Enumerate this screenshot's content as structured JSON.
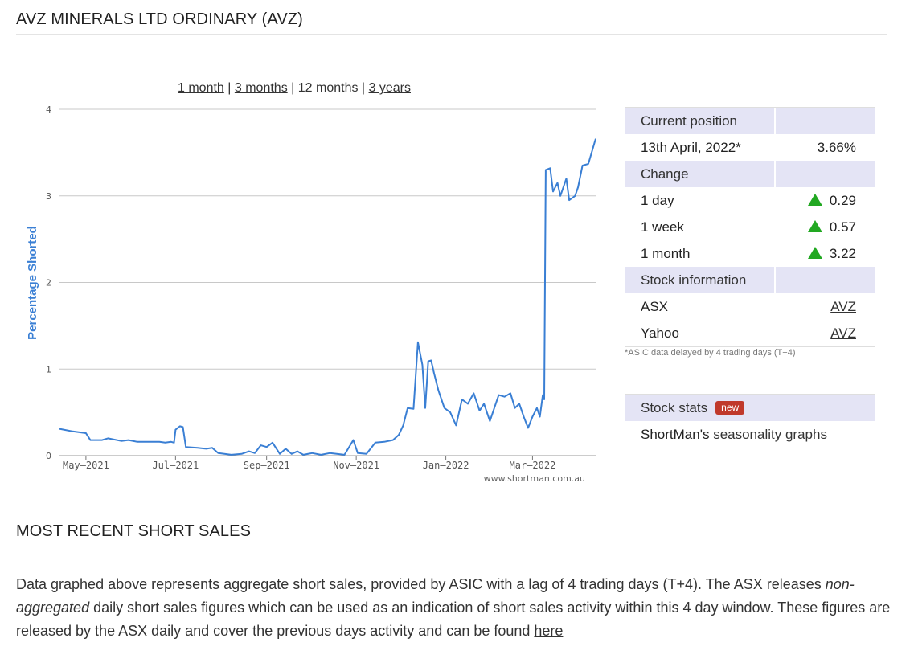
{
  "page": {
    "title": "AVZ MINERALS LTD ORDINARY (AVZ)",
    "recent_title": "MOST RECENT SHORT SALES"
  },
  "range_links": [
    {
      "label": "1 month",
      "active": false
    },
    {
      "label": "3 months",
      "active": false
    },
    {
      "label": "12 months",
      "active": true
    },
    {
      "label": "3 years",
      "active": false
    }
  ],
  "chart_data": {
    "type": "line",
    "ylabel": "Percentage Shorted",
    "ylim": [
      0,
      4
    ],
    "yticks": [
      "0",
      "1",
      "2",
      "3",
      "4"
    ],
    "xticks": [
      "May–2021",
      "Jul–2021",
      "Sep–2021",
      "Nov–2021",
      "Jan–2022",
      "Mar–2022"
    ],
    "xtick_dates": [
      "2021-05-01",
      "2021-07-01",
      "2021-09-01",
      "2021-11-01",
      "2022-01-01",
      "2022-03-01"
    ],
    "xlim": [
      "2021-04-13",
      "2022-04-13"
    ],
    "watermark": "www.shortman.com.au",
    "line_color": "#3a7fd4",
    "grid": true,
    "series": [
      {
        "points": [
          [
            "2021-04-13",
            0.31
          ],
          [
            "2021-04-22",
            0.28
          ],
          [
            "2021-05-01",
            0.26
          ],
          [
            "2021-05-04",
            0.18
          ],
          [
            "2021-05-12",
            0.18
          ],
          [
            "2021-05-16",
            0.2
          ],
          [
            "2021-05-25",
            0.17
          ],
          [
            "2021-05-30",
            0.18
          ],
          [
            "2021-06-05",
            0.16
          ],
          [
            "2021-06-12",
            0.16
          ],
          [
            "2021-06-20",
            0.16
          ],
          [
            "2021-06-24",
            0.15
          ],
          [
            "2021-06-28",
            0.16
          ],
          [
            "2021-06-30",
            0.15
          ],
          [
            "2021-07-01",
            0.3
          ],
          [
            "2021-07-04",
            0.34
          ],
          [
            "2021-07-06",
            0.33
          ],
          [
            "2021-07-08",
            0.1
          ],
          [
            "2021-07-16",
            0.09
          ],
          [
            "2021-07-22",
            0.08
          ],
          [
            "2021-07-26",
            0.09
          ],
          [
            "2021-07-30",
            0.03
          ],
          [
            "2021-08-08",
            0.01
          ],
          [
            "2021-08-15",
            0.02
          ],
          [
            "2021-08-20",
            0.05
          ],
          [
            "2021-08-24",
            0.03
          ],
          [
            "2021-08-28",
            0.12
          ],
          [
            "2021-09-01",
            0.1
          ],
          [
            "2021-09-05",
            0.15
          ],
          [
            "2021-09-10",
            0.02
          ],
          [
            "2021-09-14",
            0.08
          ],
          [
            "2021-09-18",
            0.02
          ],
          [
            "2021-09-22",
            0.05
          ],
          [
            "2021-09-26",
            0.01
          ],
          [
            "2021-10-02",
            0.03
          ],
          [
            "2021-10-08",
            0.01
          ],
          [
            "2021-10-14",
            0.03
          ],
          [
            "2021-10-24",
            0.01
          ],
          [
            "2021-10-30",
            0.18
          ],
          [
            "2021-11-02",
            0.03
          ],
          [
            "2021-11-08",
            0.02
          ],
          [
            "2021-11-14",
            0.15
          ],
          [
            "2021-11-20",
            0.16
          ],
          [
            "2021-11-26",
            0.18
          ],
          [
            "2021-11-30",
            0.24
          ],
          [
            "2021-12-03",
            0.35
          ],
          [
            "2021-12-06",
            0.55
          ],
          [
            "2021-12-10",
            0.54
          ],
          [
            "2021-12-13",
            1.31
          ],
          [
            "2021-12-16",
            1.05
          ],
          [
            "2021-12-18",
            0.55
          ],
          [
            "2021-12-20",
            1.09
          ],
          [
            "2021-12-22",
            1.1
          ],
          [
            "2021-12-24",
            0.95
          ],
          [
            "2021-12-27",
            0.75
          ],
          [
            "2021-12-31",
            0.55
          ],
          [
            "2022-01-04",
            0.5
          ],
          [
            "2022-01-08",
            0.35
          ],
          [
            "2022-01-12",
            0.65
          ],
          [
            "2022-01-16",
            0.6
          ],
          [
            "2022-01-20",
            0.72
          ],
          [
            "2022-01-24",
            0.52
          ],
          [
            "2022-01-27",
            0.6
          ],
          [
            "2022-01-31",
            0.4
          ],
          [
            "2022-02-03",
            0.55
          ],
          [
            "2022-02-06",
            0.7
          ],
          [
            "2022-02-10",
            0.68
          ],
          [
            "2022-02-14",
            0.72
          ],
          [
            "2022-02-17",
            0.55
          ],
          [
            "2022-02-20",
            0.6
          ],
          [
            "2022-02-23",
            0.45
          ],
          [
            "2022-02-26",
            0.32
          ],
          [
            "2022-03-01",
            0.45
          ],
          [
            "2022-03-04",
            0.55
          ],
          [
            "2022-03-06",
            0.45
          ],
          [
            "2022-03-08",
            0.7
          ],
          [
            "2022-03-09",
            0.65
          ],
          [
            "2022-03-10",
            3.3
          ],
          [
            "2022-03-13",
            3.32
          ],
          [
            "2022-03-15",
            3.05
          ],
          [
            "2022-03-18",
            3.15
          ],
          [
            "2022-03-20",
            3.0
          ],
          [
            "2022-03-24",
            3.2
          ],
          [
            "2022-03-26",
            2.95
          ],
          [
            "2022-03-30",
            3.0
          ],
          [
            "2022-04-01",
            3.1
          ],
          [
            "2022-04-04",
            3.35
          ],
          [
            "2022-04-08",
            3.37
          ],
          [
            "2022-04-13",
            3.66
          ]
        ]
      }
    ]
  },
  "position": {
    "header": "Current position",
    "date": "13th April, 2022*",
    "value": "3.66%"
  },
  "change": {
    "header": "Change",
    "rows": [
      {
        "label": "1 day",
        "value": "0.29"
      },
      {
        "label": "1 week",
        "value": "0.57"
      },
      {
        "label": "1 month",
        "value": "3.22"
      }
    ]
  },
  "stock_info": {
    "header": "Stock information",
    "rows": [
      {
        "label": "ASX",
        "link": "AVZ"
      },
      {
        "label": "Yahoo",
        "link": "AVZ"
      }
    ]
  },
  "note": "*ASIC data delayed by 4 trading days (T+4)",
  "stats": {
    "header": "Stock stats",
    "badge": "new",
    "text_prefix": "ShortMan's",
    "link": "seasonality graphs"
  },
  "description": {
    "part1": "Data graphed above represents aggregate short sales, provided by ASIC with a lag of 4 trading days (T+4). The ASX releases ",
    "emphasis": "non-aggregated",
    "part2": " daily short sales figures which can be used as an indication of short sales activity within this 4 day window. These figures are released by the ASX daily and cover the previous days activity and can be found ",
    "link": "here"
  }
}
